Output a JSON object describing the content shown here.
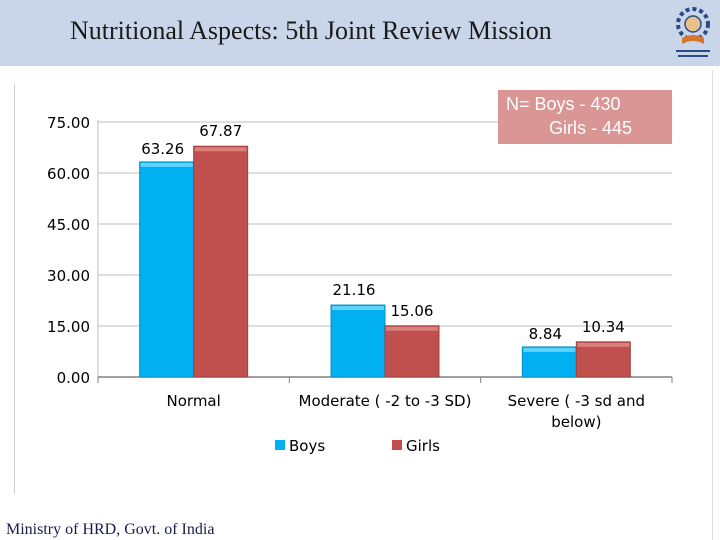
{
  "header": {
    "title": "Nutritional Aspects: 5th Joint Review Mission"
  },
  "legend_box": {
    "line1": "N=  Boys - 430",
    "line2": "Girls - 445"
  },
  "footer": {
    "text": "Ministry of HRD, Govt. of India"
  },
  "colors": {
    "boys": "#00b0f0",
    "girls": "#c0504d",
    "header_bg": "#c9d6ea",
    "nbox_bg": "#d99694"
  },
  "chart_data": {
    "type": "bar",
    "categories": [
      "Normal",
      "Moderate ( -2 to -3 SD)",
      "Severe  ( -3 sd and below)"
    ],
    "series": [
      {
        "name": "Boys",
        "values": [
          63.26,
          21.16,
          8.84
        ],
        "labels": [
          "63.26",
          "21.16",
          "8.84"
        ]
      },
      {
        "name": "Girls",
        "values": [
          67.87,
          15.06,
          10.34
        ],
        "labels": [
          "67.87",
          "15.06",
          "10.34"
        ]
      }
    ],
    "yticks": [
      "0.00",
      "15.00",
      "30.00",
      "45.00",
      "60.00",
      "75.00"
    ],
    "ylim": [
      0,
      75
    ],
    "grid": true,
    "legend_position": "bottom"
  }
}
